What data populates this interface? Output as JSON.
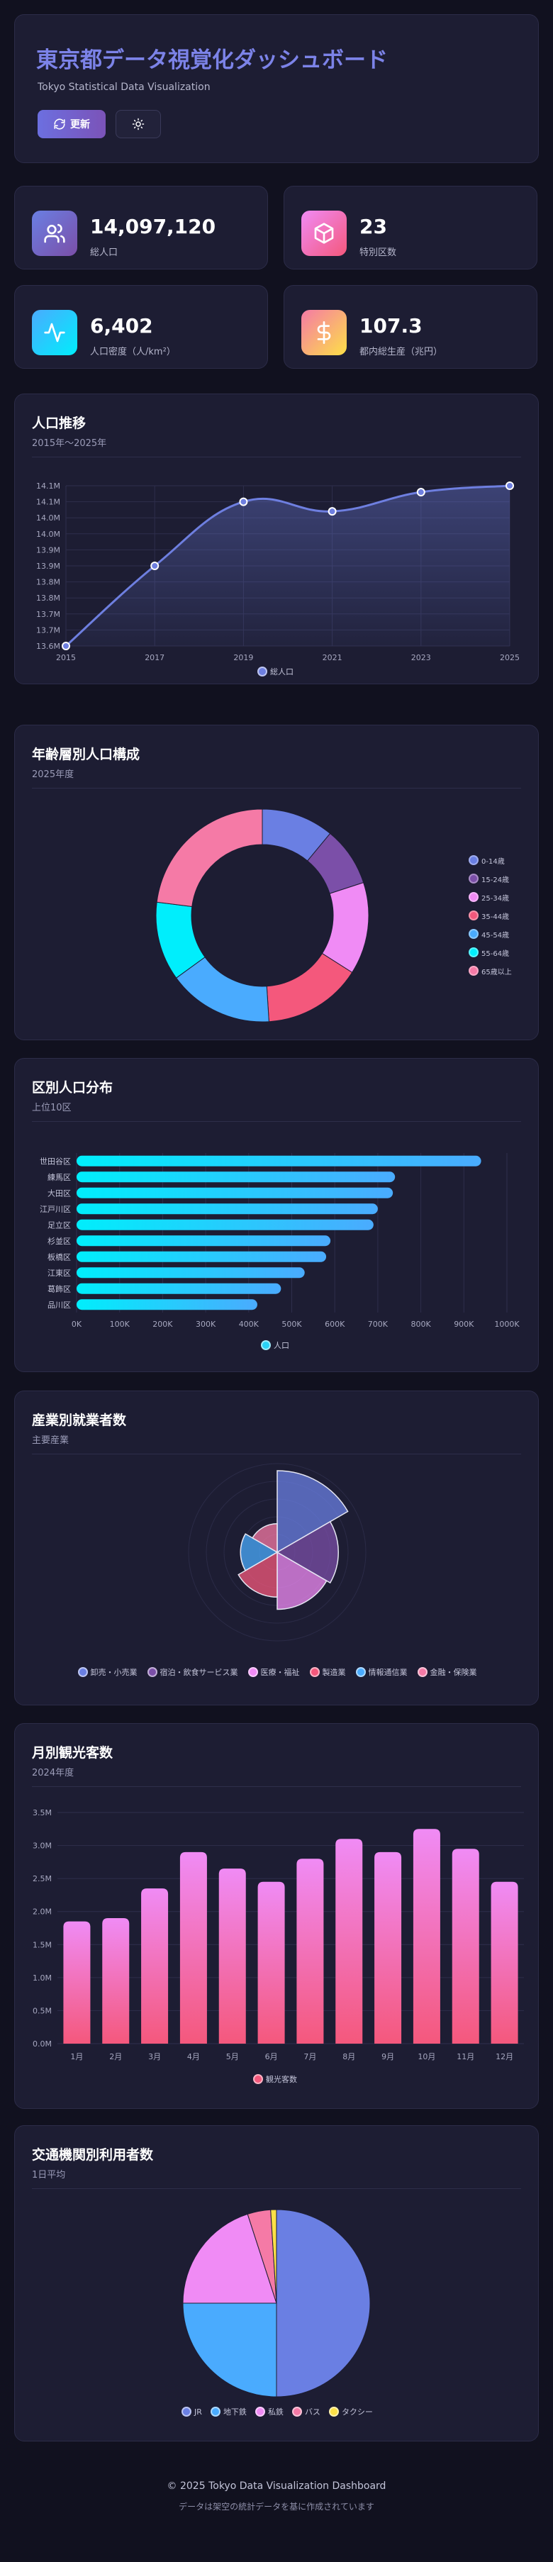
{
  "header": {
    "title": "東京都データ視覚化ダッシュボード",
    "subtitle": "Tokyo Statistical Data Visualization",
    "refresh_label": "更新"
  },
  "stats": [
    {
      "value": "14,097,120",
      "label": "総人口",
      "icon": "users-icon"
    },
    {
      "value": "23",
      "label": "特別区数",
      "icon": "cube-icon"
    },
    {
      "value": "6,402",
      "label": "人口密度（人/km²）",
      "icon": "pulse-icon"
    },
    {
      "value": "107.3",
      "label": "都内総生産（兆円）",
      "icon": "dollar-icon"
    }
  ],
  "charts": {
    "population": {
      "title": "人口推移",
      "subtitle": "2015年〜2025年",
      "legend": "総人口"
    },
    "age": {
      "title": "年齢層別人口構成",
      "subtitle": "2025年度"
    },
    "ward": {
      "title": "区別人口分布",
      "subtitle": "上位10区",
      "legend": "人口"
    },
    "industry": {
      "title": "産業別就業者数",
      "subtitle": "主要産業"
    },
    "tourism": {
      "title": "月別観光客数",
      "subtitle": "2024年度",
      "legend": "観光客数"
    },
    "transit": {
      "title": "交通機関別利用者数",
      "subtitle": "1日平均"
    }
  },
  "footer": {
    "copyright": "© 2025 Tokyo Data Visualization Dashboard",
    "note": "データは架空の統計データを基に作成されています"
  },
  "chart_data": [
    {
      "type": "area",
      "title": "人口推移",
      "x": [
        "2015",
        "2017",
        "2019",
        "2021",
        "2023",
        "2025"
      ],
      "series": [
        {
          "name": "総人口",
          "values": [
            13.6,
            13.85,
            14.05,
            14.02,
            14.08,
            14.1
          ]
        }
      ],
      "ylim": [
        13.6,
        14.1
      ],
      "yticks": [
        "13.6M",
        "13.7M",
        "13.7M",
        "13.8M",
        "13.8M",
        "13.9M",
        "13.9M",
        "14.0M",
        "14.0M",
        "14.1M",
        "14.1M"
      ],
      "colors": [
        "#6e7fe0"
      ]
    },
    {
      "type": "pie",
      "title": "年齢層別人口構成",
      "categories": [
        "0-14歳",
        "15-24歳",
        "25-34歳",
        "35-44歳",
        "45-54歳",
        "55-64歳",
        "65歳以上"
      ],
      "values": [
        11,
        9,
        14,
        15,
        16,
        12,
        23
      ],
      "colors": [
        "#6a7fe3",
        "#7b4fa8",
        "#f08bf5",
        "#f4587c",
        "#4aabfe",
        "#00eefc",
        "#f57aa6"
      ],
      "legend_position": "right"
    },
    {
      "type": "bar",
      "orientation": "horizontal",
      "title": "区別人口分布",
      "categories": [
        "世田谷区",
        "練馬区",
        "大田区",
        "江戸川区",
        "足立区",
        "杉並区",
        "板橋区",
        "江東区",
        "葛飾区",
        "品川区"
      ],
      "series": [
        {
          "name": "人口",
          "values": [
            940000,
            740000,
            735000,
            700000,
            690000,
            590000,
            580000,
            530000,
            475000,
            420000
          ]
        }
      ],
      "xlim": [
        0,
        1000000
      ],
      "xticks": [
        "0K",
        "100K",
        "200K",
        "300K",
        "400K",
        "500K",
        "600K",
        "700K",
        "800K",
        "900K",
        "1000K"
      ]
    },
    {
      "type": "polar",
      "title": "産業別就業者数",
      "categories": [
        "卸売・小売業",
        "宿泊・飲食サービス業",
        "医療・福祉",
        "製造業",
        "情報通信業",
        "金融・保険業"
      ],
      "values": [
        100,
        75,
        70,
        55,
        45,
        35
      ],
      "colors": [
        "#6a7fe3",
        "#7b4fa8",
        "#f08bf5",
        "#f4587c",
        "#4aabfe",
        "#f57aa6"
      ],
      "legend_position": "bottom"
    },
    {
      "type": "bar",
      "title": "月別観光客数",
      "categories": [
        "1月",
        "2月",
        "3月",
        "4月",
        "5月",
        "6月",
        "7月",
        "8月",
        "9月",
        "10月",
        "11月",
        "12月"
      ],
      "series": [
        {
          "name": "観光客数",
          "values": [
            1.85,
            1.9,
            2.35,
            2.9,
            2.65,
            2.45,
            2.8,
            3.1,
            2.9,
            3.25,
            2.95,
            2.45
          ]
        }
      ],
      "ylim": [
        0,
        3.5
      ],
      "yticks": [
        "0.0M",
        "0.5M",
        "1.0M",
        "1.5M",
        "2.0M",
        "2.5M",
        "3.0M",
        "3.5M"
      ]
    },
    {
      "type": "pie",
      "title": "交通機関別利用者数",
      "categories": [
        "JR",
        "地下鉄",
        "私鉄",
        "バス",
        "タクシー"
      ],
      "values": [
        50,
        25,
        20,
        4,
        1
      ],
      "colors": [
        "#6a7fe3",
        "#4aabfe",
        "#f08bf5",
        "#f57aa6",
        "#fde047"
      ],
      "legend_position": "bottom"
    }
  ]
}
